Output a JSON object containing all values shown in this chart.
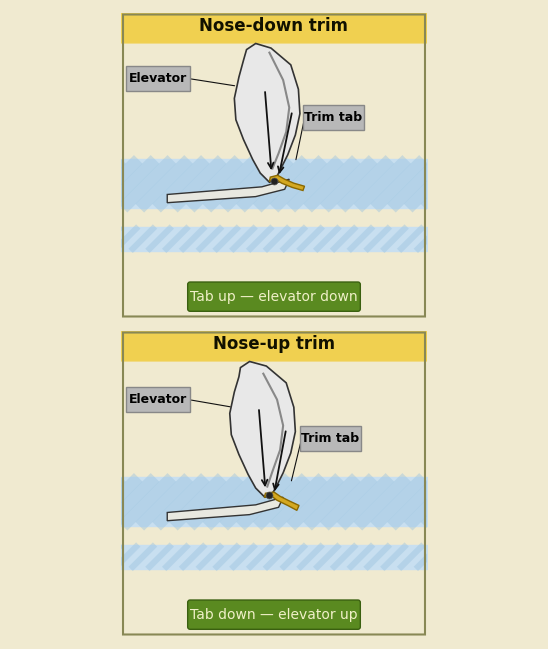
{
  "title1": "Nose-down trim",
  "title2": "Nose-up trim",
  "label1": "Tab up — elevator down",
  "label2": "Tab down — elevator up",
  "elevator_label": "Elevator",
  "trimtab_label": "Trim tab",
  "bg_outer": "#f0ead0",
  "panel_bg": "#f5f0d8",
  "header_color": "#f0d050",
  "header_text_color": "#111100",
  "green_box_color": "#5a8a20",
  "green_text_color": "#f0f0c8",
  "label_box_color": "#b8b8b8",
  "label_box_edge": "#888888",
  "water_light": "#c8dff0",
  "water_dark": "#9cc4e0",
  "tab_color": "#d4a820",
  "tab_edge": "#8a6800",
  "arrow_color": "#111111",
  "outline_color": "#111111",
  "elev_face": "#e8e8e8",
  "elev_edge": "#333333",
  "fuse_face": "#e8e8e0",
  "fuse_edge": "#333333"
}
